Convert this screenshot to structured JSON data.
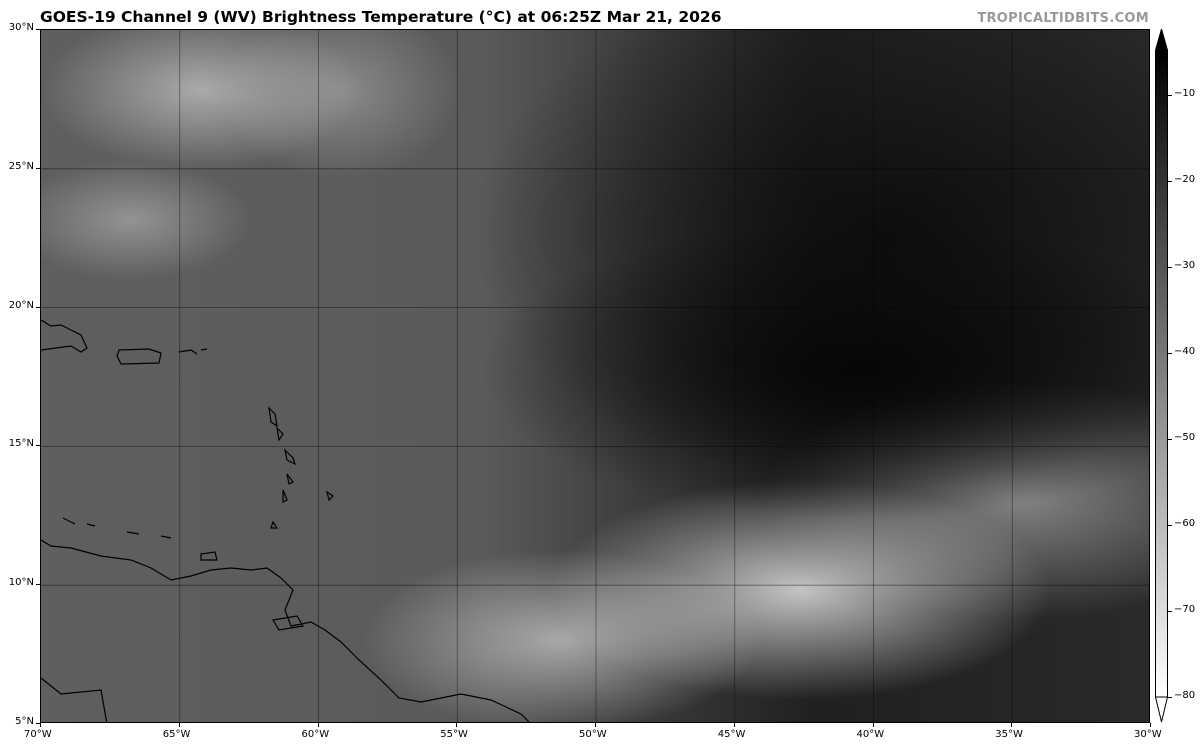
{
  "header": {
    "title": "GOES-19 Channel 9 (WV) Brightness Temperature (°C) at 06:25Z Mar 21, 2026",
    "brand": "TROPICALTIDBITS.COM"
  },
  "map": {
    "projection": "equirectangular",
    "lon_range": [
      -70,
      -30
    ],
    "lat_range": [
      5,
      30
    ],
    "grid": true,
    "colormap": "grayscale, dark = warm, white = cold",
    "lon_ticks": [
      "70°W",
      "65°W",
      "60°W",
      "55°W",
      "50°W",
      "45°W",
      "40°W",
      "35°W",
      "30°W"
    ],
    "lat_ticks": [
      "30°N",
      "25°N",
      "20°N",
      "15°N",
      "10°N",
      "5°N"
    ]
  },
  "colorbar": {
    "range": [
      -80,
      -5
    ],
    "extend": "both",
    "top_color": "#000000",
    "bottom_color": "#ffffff",
    "ticks": [
      "−10",
      "−20",
      "−30",
      "−40",
      "−50",
      "−60",
      "−70",
      "−80"
    ]
  }
}
